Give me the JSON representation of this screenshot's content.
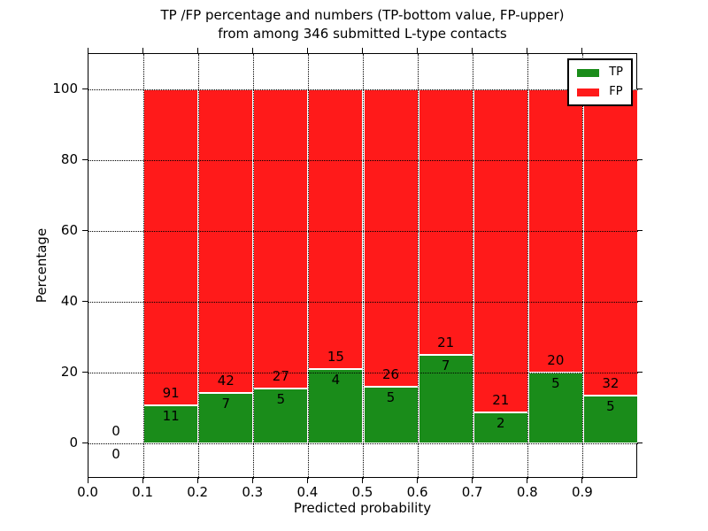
{
  "chart_data": {
    "type": "bar",
    "stacked": true,
    "title_line1": "TP /FP percentage and numbers (TP-bottom value, FP-upper)",
    "title_line2": "from among 346 submitted L-type contacts",
    "xlabel": "Predicted probability",
    "ylabel": "Percentage",
    "xlim": [
      0.0,
      1.0
    ],
    "ylim": [
      -10,
      110
    ],
    "xticks": [
      0.0,
      0.1,
      0.2,
      0.3,
      0.4,
      0.5,
      0.6,
      0.7,
      0.8,
      0.9
    ],
    "yticks": [
      0,
      20,
      40,
      60,
      80,
      100
    ],
    "grid": true,
    "legend_position": "upper right",
    "legend": [
      {
        "label": "TP",
        "color": "#1a8c1a"
      },
      {
        "label": "FP",
        "color": "#ff1a1a"
      }
    ],
    "total_contacts": 346,
    "bins": [
      {
        "range": [
          0.0,
          0.1
        ],
        "tp": 0,
        "fp": 0,
        "tp_pct": 0.0,
        "fp_pct": 0.0
      },
      {
        "range": [
          0.1,
          0.2
        ],
        "tp": 11,
        "fp": 91,
        "tp_pct": 10.8,
        "fp_pct": 89.2
      },
      {
        "range": [
          0.2,
          0.3
        ],
        "tp": 7,
        "fp": 42,
        "tp_pct": 14.3,
        "fp_pct": 85.7
      },
      {
        "range": [
          0.3,
          0.4
        ],
        "tp": 5,
        "fp": 27,
        "tp_pct": 15.6,
        "fp_pct": 84.4
      },
      {
        "range": [
          0.4,
          0.5
        ],
        "tp": 4,
        "fp": 15,
        "tp_pct": 21.1,
        "fp_pct": 78.9
      },
      {
        "range": [
          0.5,
          0.6
        ],
        "tp": 5,
        "fp": 26,
        "tp_pct": 16.1,
        "fp_pct": 83.9
      },
      {
        "range": [
          0.6,
          0.7
        ],
        "tp": 7,
        "fp": 21,
        "tp_pct": 25.0,
        "fp_pct": 75.0
      },
      {
        "range": [
          0.7,
          0.8
        ],
        "tp": 2,
        "fp": 21,
        "tp_pct": 8.7,
        "fp_pct": 91.3
      },
      {
        "range": [
          0.8,
          0.9
        ],
        "tp": 5,
        "fp": 20,
        "tp_pct": 20.0,
        "fp_pct": 80.0
      },
      {
        "range": [
          0.9,
          1.0
        ],
        "tp": 5,
        "fp": 32,
        "tp_pct": 13.5,
        "fp_pct": 86.5
      }
    ],
    "colors": {
      "tp": "#1a8c1a",
      "fp": "#ff1a1a",
      "grid": "#000000",
      "text": "#000000",
      "background": "#ffffff"
    }
  }
}
